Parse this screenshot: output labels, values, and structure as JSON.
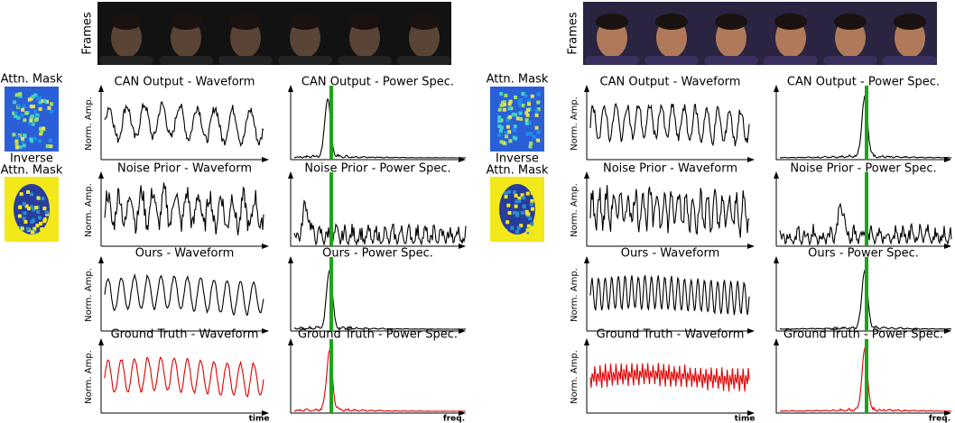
{
  "panels": [
    {
      "frames_label": "Frames",
      "mask_label": "Attn. Mask",
      "inverse_mask_label": [
        "Inverse",
        "Attn. Mask"
      ],
      "y_axis_label": "Norm. Amp.",
      "time_label": "time",
      "freq_label": "freq.",
      "rows": [
        {
          "waveform_title": "CAN Output - Waveform",
          "spectrum_title": "CAN Output - Power Spec."
        },
        {
          "waveform_title": "Noise Prior - Waveform",
          "spectrum_title": "Noise Prior - Power Spec."
        },
        {
          "waveform_title": "Ours - Waveform",
          "spectrum_title": "Ours - Power Spec."
        },
        {
          "waveform_title": "Ground Truth - Waveform",
          "spectrum_title": "Ground Truth - Power Spec."
        }
      ]
    },
    {
      "frames_label": "Frames",
      "mask_label": "Attn. Mask",
      "inverse_mask_label": [
        "Inverse",
        "Attn. Mask"
      ],
      "y_axis_label": "Norm. Amp.",
      "time_label": "time",
      "freq_label": "freq.",
      "rows": [
        {
          "waveform_title": "CAN Output - Waveform",
          "spectrum_title": "CAN Output - Power Spec."
        },
        {
          "waveform_title": "Noise Prior - Waveform",
          "spectrum_title": "Noise Prior - Power Spec."
        },
        {
          "waveform_title": "Ours - Waveform",
          "spectrum_title": "Ours - Power Spec."
        },
        {
          "waveform_title": "Ground Truth - Waveform",
          "spectrum_title": "Ground Truth - Power Spec."
        }
      ]
    }
  ]
}
